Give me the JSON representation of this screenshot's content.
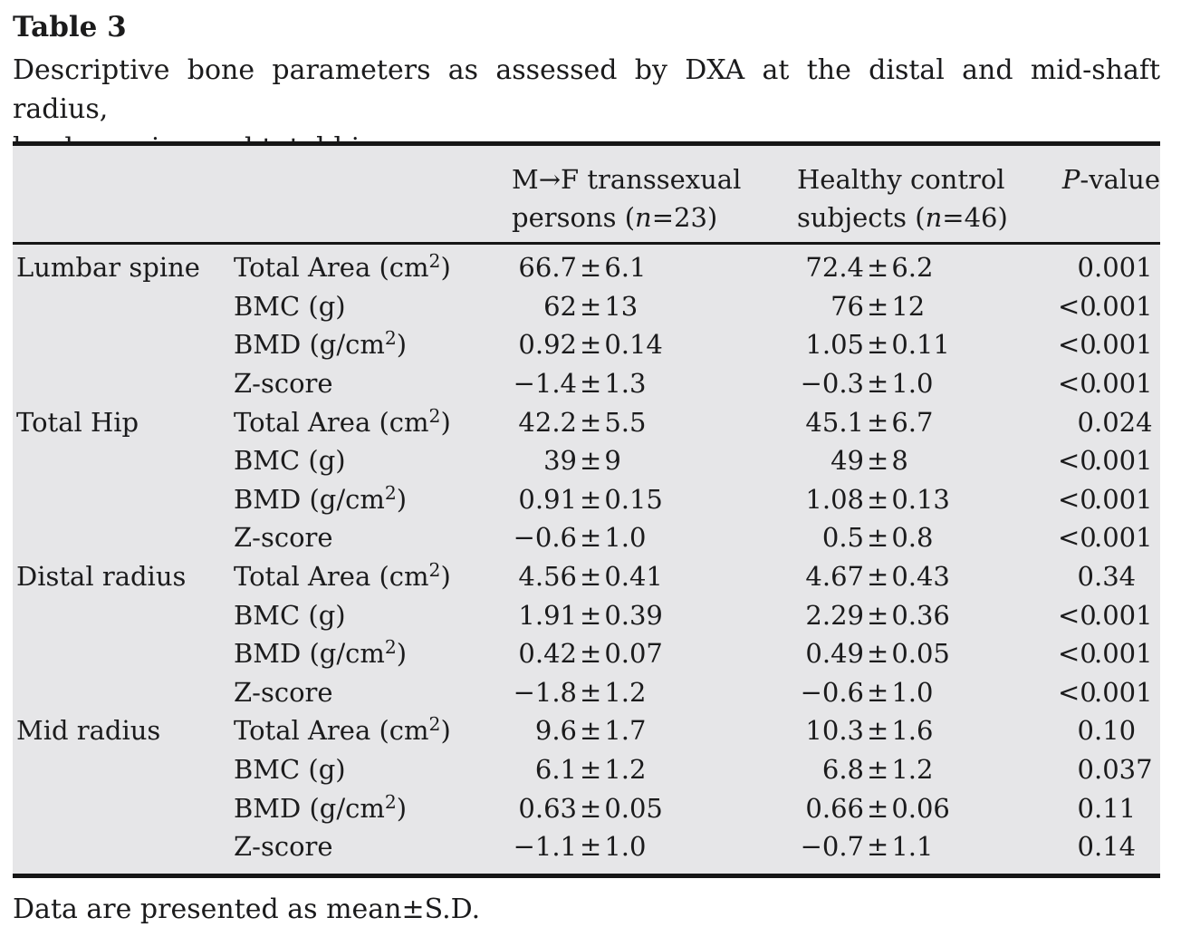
{
  "document": {
    "title": "Table 3",
    "caption_line1": "Descriptive bone parameters as assessed by DXA at the distal and mid-shaft radius,",
    "caption_line2": "lumbar spine and total hip",
    "footnote": "Data are presented as mean±S.D."
  },
  "table": {
    "header": {
      "group_mf_line1": "M→F transsexual",
      "group_mf_line2_pre": "persons (",
      "group_mf_n": "n",
      "group_mf_line2_post": "=23)",
      "group_hc_line1": "Healthy control",
      "group_hc_line2_pre": "subjects (",
      "group_hc_n": "n",
      "group_hc_line2_post": "=46)",
      "pvalue_italic": "P",
      "pvalue_rest": "-value"
    },
    "groups": [
      {
        "region": "Lumbar spine",
        "rows": [
          {
            "param": "Total Area (cm²)",
            "mf": "66.7±6.1",
            "hc": "72.4±6.2",
            "p": "0.001"
          },
          {
            "param": "BMC (g)",
            "mf": "62±13",
            "hc": "76±12",
            "p": "<0.001"
          },
          {
            "param": "BMD (g/cm²)",
            "mf": "0.92±0.14",
            "hc": "1.05±0.11",
            "p": "<0.001"
          },
          {
            "param": "Z-score",
            "mf": "−1.4±1.3",
            "hc": "−0.3±1.0",
            "p": "<0.001"
          }
        ]
      },
      {
        "region": "Total Hip",
        "rows": [
          {
            "param": "Total Area (cm²)",
            "mf": "42.2±5.5",
            "hc": "45.1±6.7",
            "p": "0.024"
          },
          {
            "param": "BMC (g)",
            "mf": "39±9",
            "hc": "49±8",
            "p": "<0.001"
          },
          {
            "param": "BMD (g/cm²)",
            "mf": "0.91±0.15",
            "hc": "1.08±0.13",
            "p": "<0.001"
          },
          {
            "param": "Z-score",
            "mf": "−0.6±1.0",
            "hc": "0.5±0.8",
            "p": "<0.001"
          }
        ]
      },
      {
        "region": "Distal radius",
        "rows": [
          {
            "param": "Total Area (cm²)",
            "mf": "4.56±0.41",
            "hc": "4.67±0.43",
            "p": "0.34"
          },
          {
            "param": "BMC (g)",
            "mf": "1.91±0.39",
            "hc": "2.29±0.36",
            "p": "<0.001"
          },
          {
            "param": "BMD (g/cm²)",
            "mf": "0.42±0.07",
            "hc": "0.49±0.05",
            "p": "<0.001"
          },
          {
            "param": "Z-score",
            "mf": "−1.8±1.2",
            "hc": "−0.6±1.0",
            "p": "<0.001"
          }
        ]
      },
      {
        "region": "Mid radius",
        "rows": [
          {
            "param": "Total Area (cm²)",
            "mf": "9.6±1.7",
            "hc": "10.3±1.6",
            "p": "0.10"
          },
          {
            "param": "BMC (g)",
            "mf": "6.1±1.2",
            "hc": "6.8±1.2",
            "p": "0.037"
          },
          {
            "param": "BMD (g/cm²)",
            "mf": "0.63±0.05",
            "hc": "0.66±0.06",
            "p": "0.11"
          },
          {
            "param": "Z-score",
            "mf": "−1.1±1.0",
            "hc": "−0.7±1.1",
            "p": "0.14"
          }
        ]
      }
    ]
  }
}
